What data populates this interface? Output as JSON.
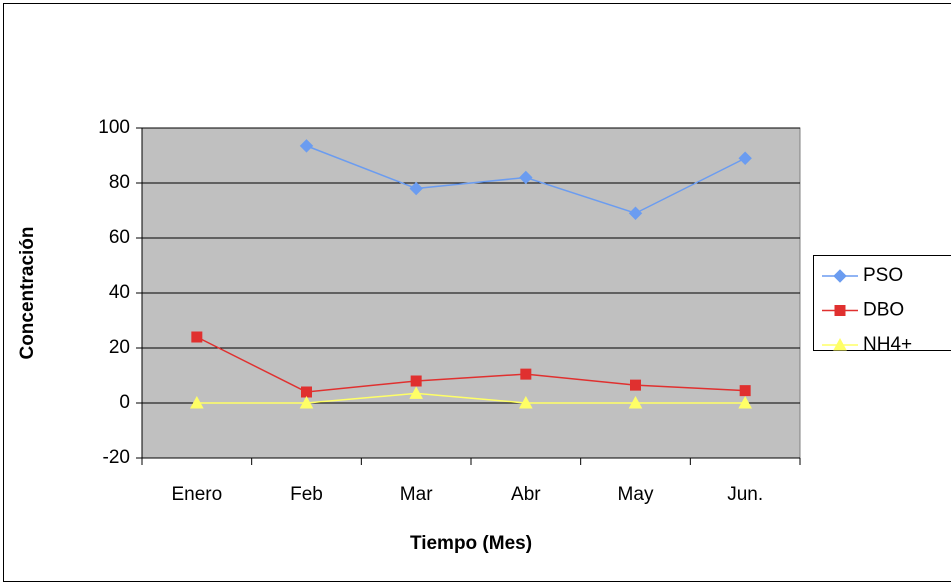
{
  "chart_data": {
    "type": "line",
    "x_label": "Tiempo (Mes)",
    "y_label": "Concentración",
    "categories": [
      "Enero",
      "Feb",
      "Mar",
      "Abr",
      "May",
      "Jun."
    ],
    "series": [
      {
        "name": "PSO",
        "color": "#6b9cf0",
        "marker": "diamond",
        "values": [
          null,
          93.5,
          78,
          82,
          69,
          89
        ]
      },
      {
        "name": "DBO",
        "color": "#e0302f",
        "marker": "square",
        "values": [
          24,
          4,
          8,
          10.5,
          6.5,
          4.5
        ]
      },
      {
        "name": "NH4+",
        "color": "#ffff66",
        "marker": "triangle",
        "values": [
          0,
          0,
          3.5,
          0,
          0,
          0
        ]
      }
    ],
    "ylim": [
      -20,
      100
    ],
    "yticks": [
      -20,
      0,
      20,
      40,
      60,
      80,
      100
    ],
    "grid": true,
    "plot_background": "#c0c0c0",
    "legend": "right"
  }
}
